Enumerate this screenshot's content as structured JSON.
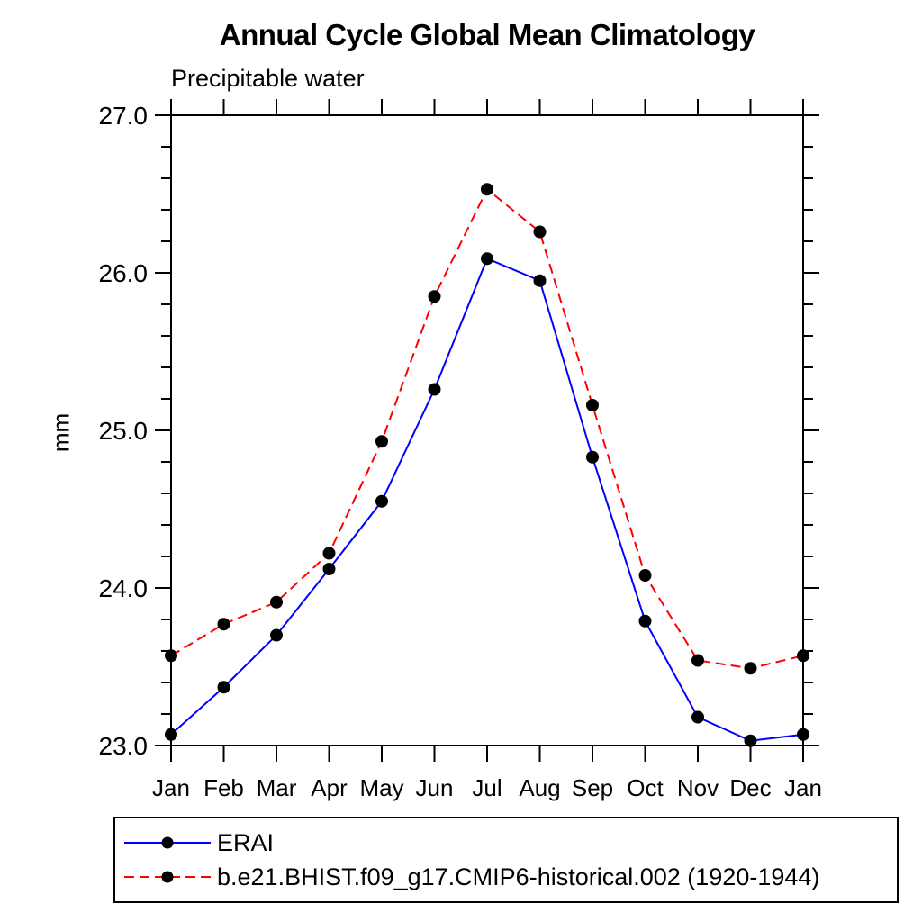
{
  "page_background": "#ffffff",
  "chart_data": {
    "type": "line",
    "title": "Annual Cycle Global Mean Climatology",
    "subtitle": "Precipitable water",
    "xlabel": "",
    "ylabel": "mm",
    "x_tick_labels": [
      "Jan",
      "Feb",
      "Mar",
      "Apr",
      "May",
      "Jun",
      "Jul",
      "Aug",
      "Sep",
      "Oct",
      "Nov",
      "Dec",
      "Jan"
    ],
    "y_tick_labels": [
      "23.0",
      "24.0",
      "25.0",
      "26.0",
      "27.0"
    ],
    "y_major_ticks": [
      23.0,
      24.0,
      25.0,
      26.0,
      27.0
    ],
    "y_minor_step": 0.2,
    "ylim": [
      23.0,
      27.0
    ],
    "grid": false,
    "legend_position": "bottom",
    "frame_color": "#000000",
    "marker_shape": "circle",
    "series": [
      {
        "name": "ERAI",
        "color": "#0000ff",
        "line_style": "solid",
        "marker_color": "#000000",
        "values": [
          23.07,
          23.37,
          23.7,
          24.12,
          24.55,
          25.26,
          26.09,
          25.95,
          24.83,
          23.79,
          23.18,
          23.03,
          23.07
        ]
      },
      {
        "name": "b.e21.BHIST.f09_g17.CMIP6-historical.002 (1920-1944)",
        "color": "#ff0000",
        "line_style": "dashed",
        "marker_color": "#000000",
        "values": [
          23.57,
          23.77,
          23.91,
          24.22,
          24.93,
          25.85,
          26.53,
          26.26,
          25.16,
          24.08,
          23.54,
          23.49,
          23.57
        ]
      }
    ]
  }
}
